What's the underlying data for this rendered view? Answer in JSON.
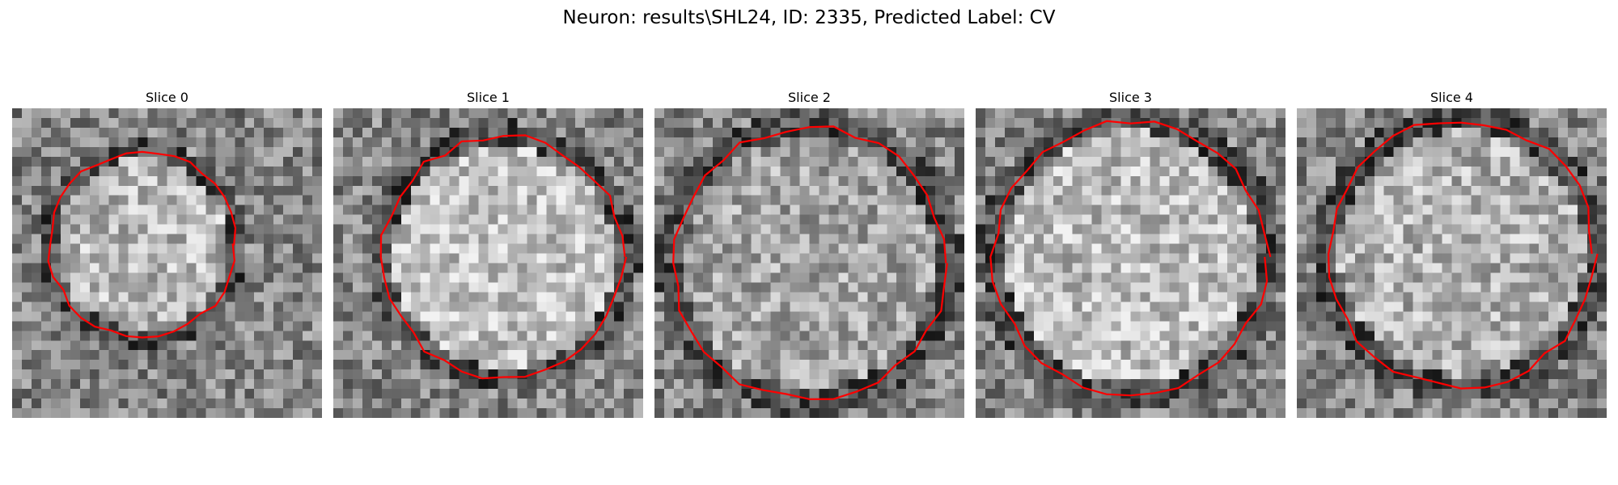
{
  "figure": {
    "title": "Neuron: results\\SHL24, ID: 2335, Predicted Label: CV"
  },
  "panels": [
    {
      "label": "Slice 0",
      "seed": 11,
      "blob_radius": 0.3,
      "blob_cx": 0.42,
      "blob_cy": 0.44,
      "brightness": 0.2,
      "contour_closed": true
    },
    {
      "label": "Slice 1",
      "seed": 23,
      "blob_radius": 0.39,
      "blob_cx": 0.55,
      "blob_cy": 0.48,
      "brightness": 0.3,
      "contour_closed": false
    },
    {
      "label": "Slice 2",
      "seed": 37,
      "blob_radius": 0.44,
      "blob_cx": 0.5,
      "blob_cy": 0.5,
      "brightness": 0.05,
      "contour_closed": false
    },
    {
      "label": "Slice 3",
      "seed": 41,
      "blob_radius": 0.44,
      "blob_cx": 0.5,
      "blob_cy": 0.48,
      "brightness": 0.25,
      "contour_closed": false
    },
    {
      "label": "Slice 4",
      "seed": 53,
      "blob_radius": 0.43,
      "blob_cx": 0.53,
      "blob_cy": 0.47,
      "brightness": 0.15,
      "contour_closed": false
    }
  ],
  "colors": {
    "contour": "#ff0000",
    "background": "#ffffff"
  }
}
